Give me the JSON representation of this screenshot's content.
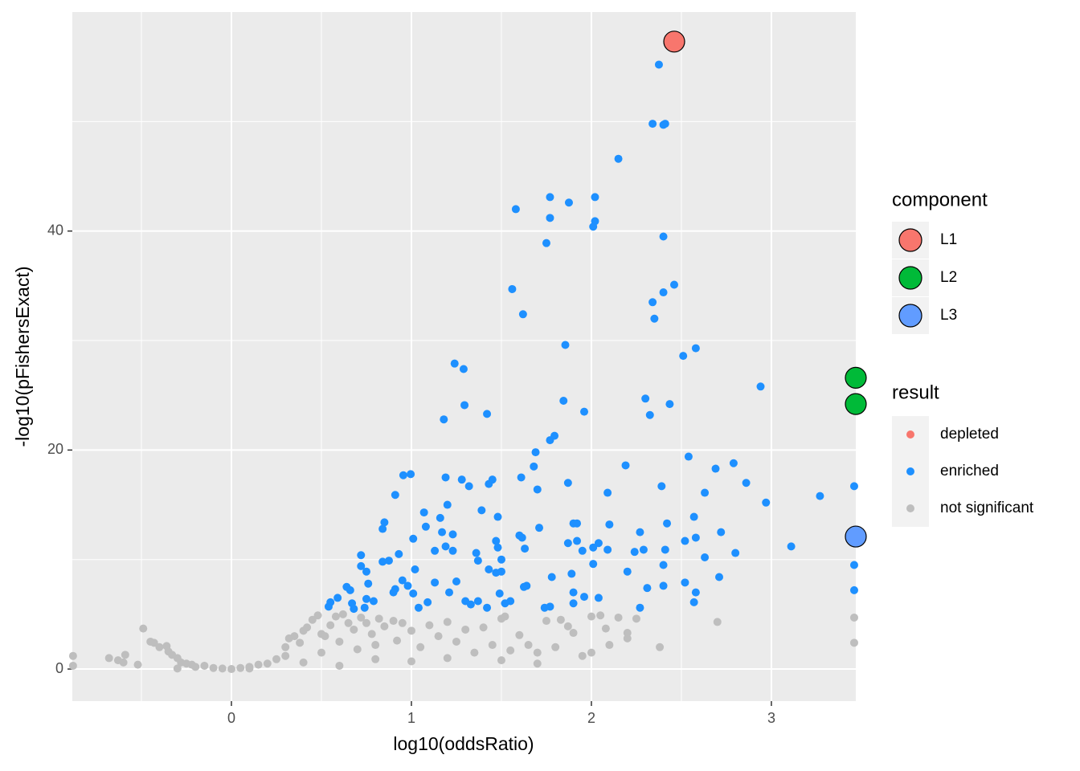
{
  "chart_data": {
    "type": "scatter",
    "xlabel": "log10(oddsRatio)",
    "ylabel": "-log10(pFishersExact)",
    "xlim": [
      -0.884,
      3.469
    ],
    "ylim": [
      -2.93,
      60.0
    ],
    "xticks": [
      0,
      1,
      2,
      3
    ],
    "yticks": [
      0,
      20,
      40
    ],
    "xminor": [
      -0.5,
      0.5,
      1.5,
      2.5
    ],
    "yminor": [
      10,
      30,
      50
    ],
    "grid": true,
    "legend_titles": {
      "component": "component",
      "result": "result"
    },
    "series": [
      {
        "name": "depleted",
        "color": "#F8766D",
        "x": [],
        "values": []
      },
      {
        "name": "enriched",
        "color": "#1E90FF",
        "x": [
          2.375,
          2.34,
          2.4,
          2.41,
          2.15,
          1.58,
          1.77,
          1.875,
          2.02,
          2.02,
          2.01,
          1.77,
          1.75,
          2.4,
          1.56,
          1.62,
          2.46,
          2.4,
          2.34,
          2.35,
          2.58,
          2.51,
          1.855,
          1.24,
          1.29,
          2.94,
          2.3,
          2.435,
          1.295,
          1.845,
          2.325,
          1.42,
          1.96,
          1.18,
          1.795,
          1.77,
          1.69,
          2.54,
          1.68,
          2.19,
          2.69,
          2.79,
          2.86,
          2.97,
          3.27,
          3.46,
          2.39,
          2.63,
          2.09,
          1.87,
          1.7,
          1.61,
          1.19,
          1.28,
          1.32,
          1.45,
          1.43,
          0.955,
          0.996,
          0.91,
          1.39,
          1.48,
          1.2,
          1.16,
          1.07,
          1.08,
          0.85,
          0.84,
          2.57,
          1.9,
          1.92,
          2.1,
          2.42,
          1.71,
          2.27,
          2.72,
          1.17,
          1.23,
          1.6,
          1.615,
          1.47,
          2.58,
          3.11,
          3.46,
          2.52,
          1.92,
          1.87,
          2.04,
          2.01,
          1.95,
          2.09,
          1.63,
          1.48,
          1.01,
          1.13,
          1.19,
          1.23,
          1.36,
          0.72,
          0.84,
          0.875,
          0.93,
          1.37,
          1.5,
          2.24,
          2.29,
          2.41,
          2.63,
          2.8,
          2.01,
          3.46,
          1.02,
          0.72,
          0.75,
          1.43,
          1.5,
          1.47,
          2.2,
          1.78,
          1.89,
          2.4,
          2.71,
          2.52,
          2.4,
          0.76,
          0.64,
          0.66,
          0.95,
          0.98,
          1.13,
          1.25,
          1.01,
          0.9,
          0.91,
          1.64,
          1.625,
          1.49,
          1.21,
          2.31,
          2.58,
          3.46,
          1.9,
          2.04,
          1.96,
          0.75,
          0.79,
          0.59,
          0.55,
          0.67,
          1.09,
          1.3,
          1.37,
          1.33,
          1.52,
          1.55,
          1.9,
          1.74,
          1.77,
          2.27,
          2.57,
          0.54,
          0.68,
          0.74,
          1.04,
          1.42
        ],
        "values": [
          55.2,
          49.8,
          49.7,
          49.8,
          46.6,
          42.0,
          43.1,
          42.6,
          43.1,
          40.9,
          40.4,
          41.2,
          38.9,
          39.5,
          34.7,
          32.4,
          35.1,
          34.4,
          33.5,
          32.0,
          29.3,
          28.6,
          29.6,
          27.9,
          27.4,
          25.8,
          24.7,
          24.2,
          24.1,
          24.5,
          23.2,
          23.3,
          23.5,
          22.8,
          21.3,
          20.9,
          19.8,
          19.4,
          18.5,
          18.6,
          18.3,
          18.8,
          17.0,
          15.2,
          15.8,
          16.7,
          16.7,
          16.1,
          16.1,
          17.0,
          16.4,
          17.5,
          17.5,
          17.3,
          16.7,
          17.3,
          16.9,
          17.7,
          17.8,
          15.9,
          14.5,
          13.9,
          15.0,
          13.8,
          14.3,
          13.0,
          13.4,
          12.8,
          13.9,
          13.3,
          13.3,
          13.2,
          13.3,
          12.9,
          12.5,
          12.5,
          12.5,
          12.3,
          12.2,
          12.0,
          11.7,
          12.0,
          11.2,
          11.9,
          11.7,
          11.7,
          11.5,
          11.5,
          11.1,
          10.8,
          10.9,
          11.0,
          11.1,
          11.9,
          10.8,
          11.2,
          10.8,
          10.6,
          10.4,
          9.8,
          9.9,
          10.5,
          9.9,
          10.0,
          10.7,
          10.9,
          10.9,
          10.2,
          10.6,
          9.6,
          9.5,
          9.1,
          9.4,
          8.9,
          9.1,
          8.9,
          8.8,
          8.9,
          8.4,
          8.7,
          9.5,
          8.4,
          7.9,
          7.6,
          7.8,
          7.5,
          7.2,
          8.1,
          7.6,
          7.9,
          8.0,
          6.9,
          7.0,
          7.3,
          7.6,
          7.5,
          6.9,
          7.0,
          7.4,
          7.0,
          7.2,
          7.0,
          6.5,
          6.6,
          6.4,
          6.2,
          6.5,
          6.1,
          6.0,
          6.1,
          6.2,
          6.2,
          5.9,
          6.0,
          6.2,
          6.0,
          5.6,
          5.7,
          5.6,
          6.1,
          5.7,
          5.5,
          5.6,
          5.6,
          5.6
        ]
      },
      {
        "name": "not significant",
        "color": "#BEBEBE",
        "x": [
          -0.88,
          -0.88,
          -0.68,
          -0.63,
          -0.6,
          -0.59,
          -0.52,
          -0.49,
          -0.45,
          -0.43,
          -0.4,
          -0.36,
          -0.35,
          -0.33,
          -0.3,
          -0.28,
          -0.25,
          -0.22,
          -0.2,
          -0.15,
          -0.1,
          -0.05,
          0.0,
          0.05,
          0.1,
          0.15,
          0.2,
          0.25,
          0.3,
          0.3,
          0.32,
          0.35,
          0.38,
          0.4,
          0.42,
          0.45,
          0.48,
          0.5,
          0.52,
          0.55,
          0.58,
          0.6,
          0.62,
          0.65,
          0.68,
          0.7,
          0.72,
          0.75,
          0.78,
          0.8,
          0.82,
          0.85,
          0.9,
          0.92,
          0.95,
          1.0,
          1.05,
          1.1,
          1.15,
          1.2,
          1.25,
          1.3,
          1.35,
          1.4,
          1.45,
          1.5,
          1.52,
          1.55,
          1.6,
          1.65,
          1.7,
          1.75,
          1.8,
          1.83,
          1.87,
          1.9,
          1.95,
          2.0,
          2.05,
          2.08,
          2.1,
          2.15,
          2.2,
          2.25,
          2.38,
          2.7,
          3.46,
          3.46,
          1.5,
          2.0,
          1.2,
          0.8,
          0.4,
          1.0,
          2.2,
          1.7,
          0.6,
          0.1,
          -0.3,
          0.5
        ],
        "values": [
          1.2,
          0.3,
          1.0,
          0.8,
          0.6,
          1.3,
          0.4,
          3.7,
          2.5,
          2.4,
          2.0,
          2.1,
          1.6,
          1.3,
          1.0,
          0.6,
          0.5,
          0.4,
          0.2,
          0.3,
          0.1,
          0.05,
          0.0,
          0.1,
          0.2,
          0.4,
          0.5,
          0.9,
          1.2,
          2.0,
          2.8,
          3.0,
          2.4,
          3.5,
          3.8,
          4.5,
          4.9,
          1.5,
          3.0,
          4.0,
          4.8,
          2.5,
          5.0,
          4.2,
          3.6,
          1.8,
          4.7,
          4.2,
          3.2,
          2.2,
          4.6,
          3.9,
          4.4,
          2.6,
          4.2,
          3.5,
          2.0,
          4.0,
          3.0,
          4.3,
          2.5,
          3.6,
          1.5,
          3.8,
          2.2,
          4.6,
          4.8,
          1.7,
          3.1,
          2.2,
          1.5,
          4.4,
          2.0,
          4.5,
          3.9,
          3.3,
          1.2,
          4.8,
          4.9,
          3.7,
          2.2,
          4.7,
          3.3,
          4.6,
          2.0,
          4.3,
          4.7,
          2.4,
          0.8,
          1.5,
          1.0,
          0.9,
          0.6,
          0.7,
          2.8,
          0.5,
          0.3,
          0.05,
          0.05,
          3.2
        ]
      }
    ],
    "components": [
      {
        "name": "L1",
        "color": "#F8766D",
        "x": [
          2.46
        ],
        "values": [
          57.3
        ]
      },
      {
        "name": "L2",
        "color": "#00BA38",
        "x": [
          3.469,
          3.469
        ],
        "values": [
          26.6,
          24.2
        ]
      },
      {
        "name": "L3",
        "color": "#619CFF",
        "x": [
          3.469
        ],
        "values": [
          12.1
        ]
      }
    ]
  }
}
